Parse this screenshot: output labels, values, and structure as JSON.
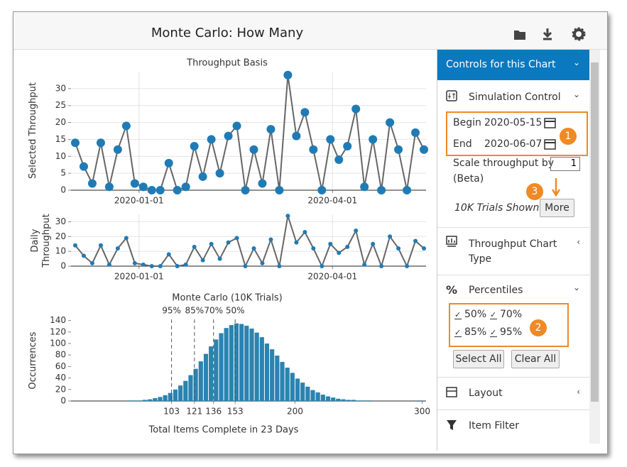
{
  "window": {
    "title": "Monte Carlo: How Many"
  },
  "chart_data": [
    {
      "type": "line",
      "title": "Throughput Basis",
      "y_label": "Selected Throughput",
      "x": [
        "2019-12-02",
        "2019-12-06",
        "2019-12-10",
        "2019-12-14",
        "2019-12-18",
        "2019-12-22",
        "2019-12-26",
        "2019-12-30",
        "2020-01-03",
        "2020-01-07",
        "2020-01-11",
        "2020-01-15",
        "2020-01-19",
        "2020-01-23",
        "2020-01-27",
        "2020-01-31",
        "2020-02-04",
        "2020-02-08",
        "2020-02-12",
        "2020-02-16",
        "2020-02-20",
        "2020-02-24",
        "2020-02-28",
        "2020-03-03",
        "2020-03-07",
        "2020-03-11",
        "2020-03-15",
        "2020-03-19",
        "2020-03-23",
        "2020-03-27",
        "2020-03-31",
        "2020-04-04",
        "2020-04-08",
        "2020-04-12",
        "2020-04-16",
        "2020-04-20",
        "2020-04-24",
        "2020-04-28",
        "2020-05-02",
        "2020-05-06",
        "2020-05-10",
        "2020-05-14"
      ],
      "values": [
        14,
        7,
        2,
        14,
        1,
        12,
        19,
        2,
        1,
        0,
        0,
        8,
        0,
        1,
        13,
        4,
        15,
        5,
        16,
        19,
        0,
        12,
        2,
        18,
        0,
        34,
        16,
        23,
        12,
        0,
        15,
        9,
        13,
        24,
        1,
        15,
        0,
        20,
        12,
        0,
        17,
        12
      ],
      "xlim": [
        "2019-11-30",
        "2020-05-15"
      ],
      "xticks": [
        "2020-01-01",
        "2020-04-01"
      ],
      "ylim": [
        0,
        35
      ],
      "yticks": [
        0,
        5,
        10,
        15,
        20,
        25,
        30
      ],
      "grid": true,
      "color": "#1f7bb6",
      "line_color": "#666666"
    },
    {
      "type": "line",
      "y_label": "Daily Throughput",
      "x": [
        "2019-12-02",
        "2019-12-06",
        "2019-12-10",
        "2019-12-14",
        "2019-12-18",
        "2019-12-22",
        "2019-12-26",
        "2019-12-30",
        "2020-01-03",
        "2020-01-07",
        "2020-01-11",
        "2020-01-15",
        "2020-01-19",
        "2020-01-23",
        "2020-01-27",
        "2020-01-31",
        "2020-02-04",
        "2020-02-08",
        "2020-02-12",
        "2020-02-16",
        "2020-02-20",
        "2020-02-24",
        "2020-02-28",
        "2020-03-03",
        "2020-03-07",
        "2020-03-11",
        "2020-03-15",
        "2020-03-19",
        "2020-03-23",
        "2020-03-27",
        "2020-03-31",
        "2020-04-04",
        "2020-04-08",
        "2020-04-12",
        "2020-04-16",
        "2020-04-20",
        "2020-04-24",
        "2020-04-28",
        "2020-05-02",
        "2020-05-06",
        "2020-05-10",
        "2020-05-14"
      ],
      "values": [
        14,
        7,
        2,
        14,
        1,
        12,
        19,
        2,
        1,
        0,
        0,
        8,
        0,
        1,
        13,
        4,
        15,
        5,
        16,
        19,
        0,
        12,
        2,
        18,
        0,
        34,
        16,
        23,
        12,
        0,
        15,
        9,
        13,
        24,
        1,
        15,
        0,
        20,
        12,
        0,
        17,
        12
      ],
      "xlim": [
        "2019-11-30",
        "2020-05-15"
      ],
      "xticks": [
        "2020-01-01",
        "2020-04-01"
      ],
      "ylim": [
        0,
        35
      ],
      "yticks": [
        0,
        10,
        20,
        30
      ],
      "grid": true,
      "color": "#1f7bb6",
      "line_color": "#666666"
    },
    {
      "type": "histogram",
      "title": "Monte Carlo (10K Trials)",
      "x_label": "Total Items Complete in 23 Days",
      "y_label": "Occurrences",
      "bins": [
        60,
        64,
        68,
        72,
        76,
        80,
        84,
        88,
        92,
        96,
        100,
        104,
        108,
        112,
        116,
        120,
        124,
        128,
        132,
        136,
        140,
        144,
        148,
        152,
        156,
        160,
        164,
        168,
        172,
        176,
        180,
        184,
        188,
        192,
        196,
        200,
        204,
        208,
        212,
        216,
        220,
        224,
        228,
        232,
        236,
        240,
        244,
        248,
        252,
        256,
        260,
        264,
        268,
        272,
        276,
        280,
        284,
        288,
        292,
        296,
        300
      ],
      "counts": [
        0,
        0,
        1,
        1,
        1,
        2,
        3,
        5,
        7,
        10,
        14,
        20,
        27,
        35,
        45,
        56,
        69,
        82,
        95,
        107,
        118,
        127,
        132,
        135,
        134,
        131,
        126,
        119,
        111,
        100,
        90,
        79,
        68,
        58,
        49,
        39,
        32,
        25,
        19,
        15,
        11,
        8,
        6,
        4,
        3,
        2,
        2,
        1,
        1,
        1,
        0,
        0,
        0,
        0,
        0,
        0,
        0,
        0,
        0,
        1
      ],
      "xlim": [
        24,
        303
      ],
      "xticks": [
        103,
        121,
        136,
        153,
        200,
        300
      ],
      "ylim": [
        0,
        142
      ],
      "yticks": [
        0,
        20,
        40,
        60,
        80,
        100,
        120,
        140
      ],
      "grid": false,
      "color": "#2b83b0",
      "percentile_lines": [
        {
          "value": 103,
          "label": "95%"
        },
        {
          "value": 121,
          "label": "85%"
        },
        {
          "value": 136,
          "label": "70%"
        },
        {
          "value": 153,
          "label": "50%"
        }
      ]
    }
  ],
  "controls": {
    "header": "Controls for this Chart",
    "simulation": {
      "title": "Simulation Control",
      "begin_label": "Begin",
      "begin": "2020-05-15",
      "end_label": "End",
      "end": "2020-06-07",
      "scale_label": "Scale throughput by",
      "scale": 1,
      "beta": "(Beta)",
      "trials": "10K Trials Shown",
      "more": "More"
    },
    "chart_type": "Throughput Chart Type",
    "percentiles": {
      "title": "Percentiles",
      "options": [
        "50%",
        "70%",
        "85%",
        "95%"
      ],
      "select_all": "Select All",
      "clear_all": "Clear All"
    },
    "layout": "Layout",
    "item_filter": "Item Filter"
  },
  "callouts": [
    "1",
    "2",
    "3"
  ]
}
